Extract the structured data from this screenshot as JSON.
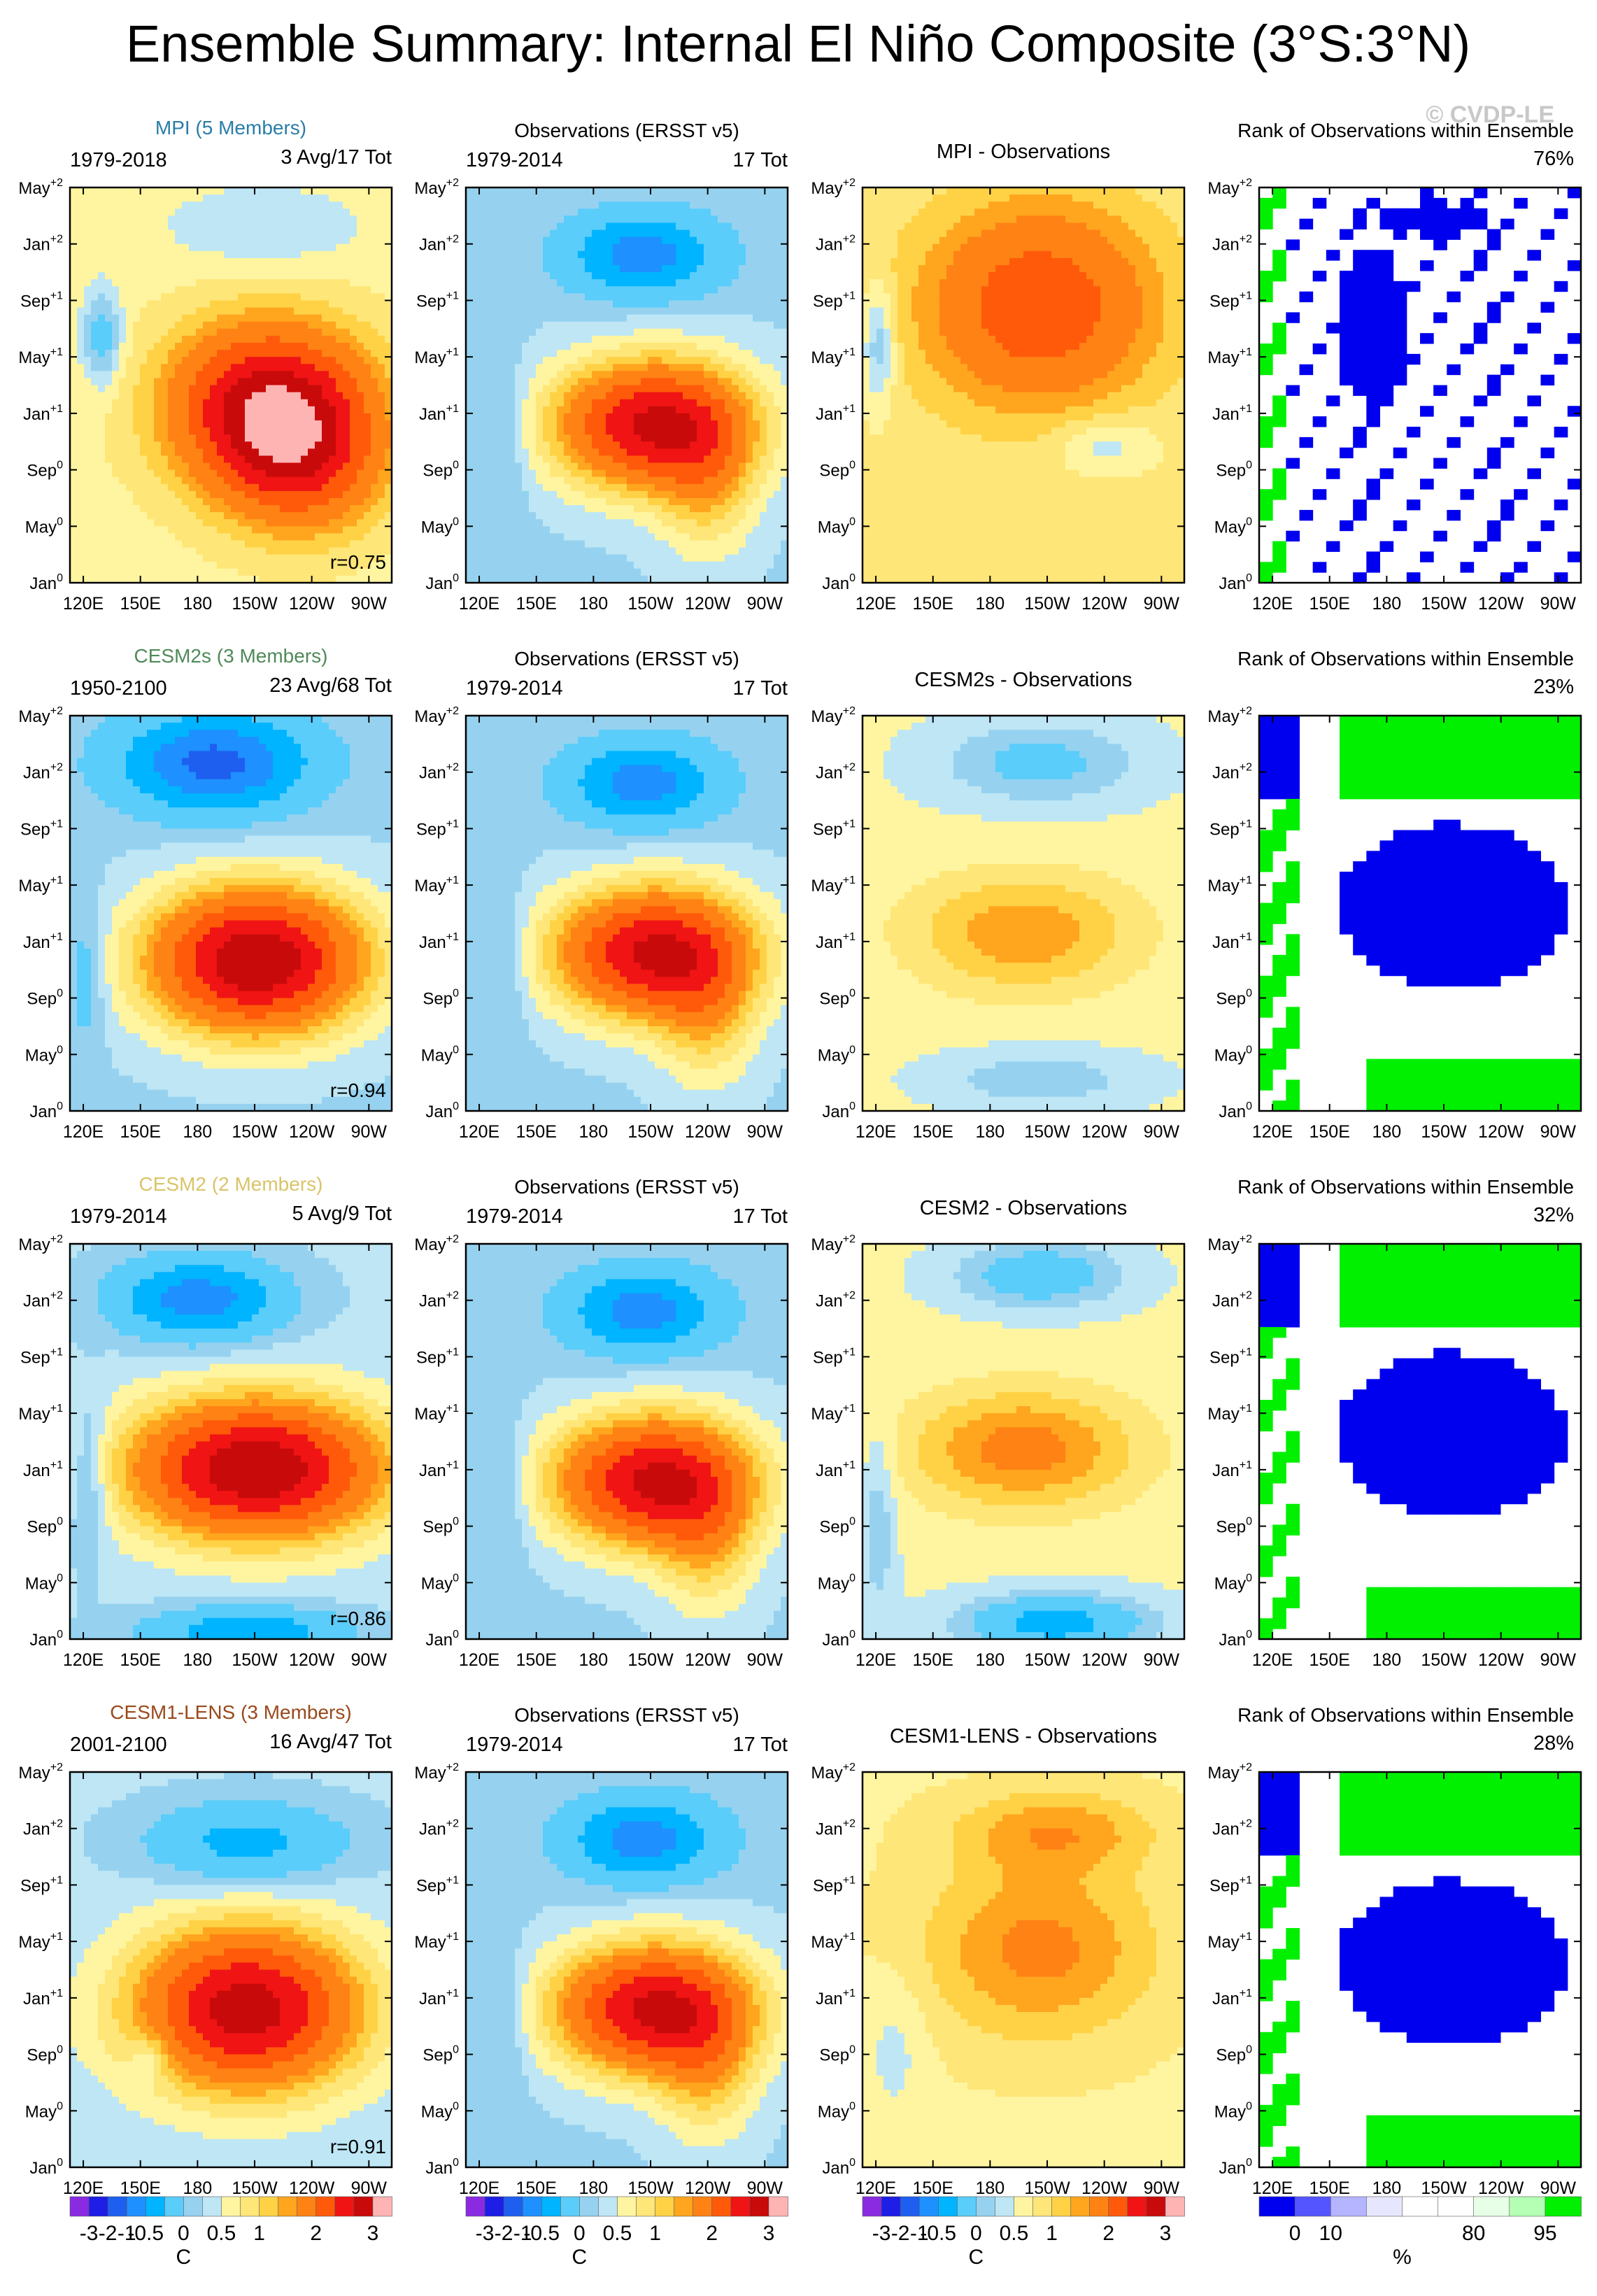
{
  "title": "Ensemble Summary: Internal El Niño Composite (3°S:3°N)",
  "watermark": "© CVDP-LE",
  "chart_data": {
    "type": "heatmap",
    "description_axes": "Hovmöller composites: longitude (x) vs composite month (y)",
    "x_ticks": [
      "120E",
      "150E",
      "180",
      "150W",
      "120W",
      "90W"
    ],
    "x_tick_lon_east": [
      120,
      150,
      180,
      210,
      240,
      270
    ],
    "x_range_lon_east": [
      113,
      282
    ],
    "y_ticks": [
      {
        "base": "Jan",
        "sup": "0"
      },
      {
        "base": "May",
        "sup": "0"
      },
      {
        "base": "Sep",
        "sup": "0"
      },
      {
        "base": "Jan",
        "sup": "+1"
      },
      {
        "base": "May",
        "sup": "+1"
      },
      {
        "base": "Sep",
        "sup": "+1"
      },
      {
        "base": "Jan",
        "sup": "+2"
      },
      {
        "base": "May",
        "sup": "+2"
      }
    ],
    "y_tick_months": [
      0,
      4,
      8,
      12,
      16,
      20,
      24,
      28
    ],
    "y_range_months": [
      0,
      28
    ],
    "rows": [
      {
        "model": "MPI (5 Members)",
        "model_color": "#2a7da8",
        "model_period": "1979-2018",
        "model_counts": "3 Avg/17 Tot",
        "pattern_r": "r=0.75",
        "obs_title": "Observations (ERSST v5)",
        "obs_period": "1979-2014",
        "obs_counts": "17 Tot",
        "diff_title": "MPI - Observations",
        "rank_title": "Rank of Observations within Ensemble",
        "rank_pct": "76%"
      },
      {
        "model": "CESM2s (3 Members)",
        "model_color": "#4f8a5a",
        "model_period": "1950-2100",
        "model_counts": "23 Avg/68 Tot",
        "pattern_r": "r=0.94",
        "obs_title": "Observations (ERSST v5)",
        "obs_period": "1979-2014",
        "obs_counts": "17 Tot",
        "diff_title": "CESM2s - Observations",
        "rank_title": "Rank of Observations within Ensemble",
        "rank_pct": "23%"
      },
      {
        "model": "CESM2 (2 Members)",
        "model_color": "#d9c46a",
        "model_period": "1979-2014",
        "model_counts": "5 Avg/9 Tot",
        "pattern_r": "r=0.86",
        "obs_title": "Observations (ERSST v5)",
        "obs_period": "1979-2014",
        "obs_counts": "17 Tot",
        "diff_title": "CESM2 - Observations",
        "rank_title": "Rank of Observations within Ensemble",
        "rank_pct": "32%"
      },
      {
        "model": "CESM1-LENS (3 Members)",
        "model_color": "#9a4a1c",
        "model_period": "2001-2100",
        "model_counts": "16 Avg/47 Tot",
        "pattern_r": "r=0.91",
        "obs_title": "Observations (ERSST v5)",
        "obs_period": "1979-2014",
        "obs_counts": "17 Tot",
        "diff_title": "CESM1-LENS - Observations",
        "rank_title": "Rank of Observations within Ensemble",
        "rank_pct": "28%"
      }
    ],
    "sst_colorbar": {
      "unit": "C",
      "labels": [
        "-3",
        "-2",
        "-1",
        "-0.5",
        "0",
        "0.5",
        "1",
        "2",
        "3"
      ],
      "colors": [
        "#8a2be2",
        "#1e1ee6",
        "#1e5ff0",
        "#1e90ff",
        "#00b4ff",
        "#5acdfa",
        "#96d2f0",
        "#bee6f5",
        "#fff5a0",
        "#ffe678",
        "#ffd246",
        "#ffa51e",
        "#ff8214",
        "#ff5a0a",
        "#f01414",
        "#c80a0a",
        "#ffb4b4"
      ]
    },
    "rank_colorbar": {
      "unit": "%",
      "labels": [
        "0",
        "10",
        "80",
        "95"
      ],
      "colors": [
        "#0000ee",
        "#5555ff",
        "#b4b4ff",
        "#e6e6ff",
        "#ffffff",
        "#ffffff",
        "#e6ffe6",
        "#b4ffb4",
        "#00f000"
      ]
    }
  }
}
